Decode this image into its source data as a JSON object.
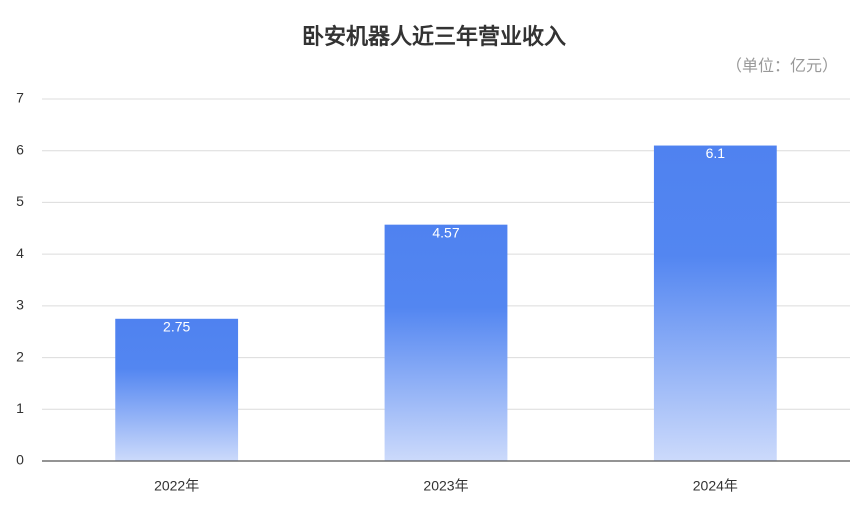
{
  "chart_data": {
    "type": "bar",
    "title": "卧安机器人近三年营业收入",
    "unit": "（单位：亿元）",
    "categories": [
      "2022年",
      "2023年",
      "2024年"
    ],
    "values": [
      2.75,
      4.57,
      6.1
    ],
    "color": "#4f82f0",
    "ylim": [
      0,
      7
    ],
    "yticks": [
      0,
      1,
      2,
      3,
      4,
      5,
      6,
      7
    ],
    "grid": true
  }
}
